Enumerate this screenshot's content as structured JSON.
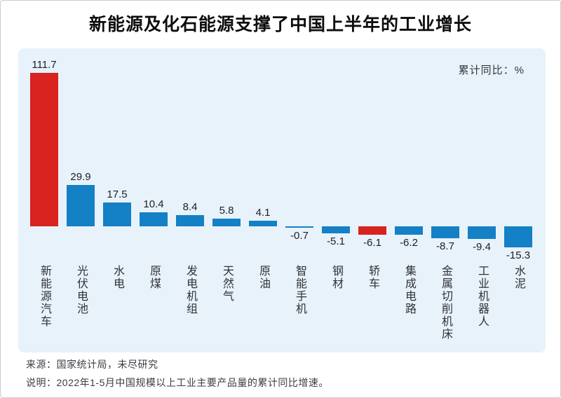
{
  "page": {
    "title": "新能源及化石能源支撑了中国上半年的工业增长",
    "source_line": "来源：国家统计局，未尽研究",
    "note_line": "说明：2022年1-5月中国规模以上工业主要产品量的累计同比增速。"
  },
  "chart_data": {
    "type": "bar",
    "title": "新能源及化石能源支撑了中国上半年的工业增长",
    "unit_label": "累计同比：%",
    "categories": [
      "新能源汽车",
      "光伏电池",
      "水电",
      "原煤",
      "发电机组",
      "天然气",
      "原油",
      "智能手机",
      "钢材",
      "轿车",
      "集成电路",
      "金属切削机床",
      "工业机器人",
      "水泥"
    ],
    "values": [
      111.7,
      29.9,
      17.5,
      10.4,
      8.4,
      5.8,
      4.1,
      -0.7,
      -5.1,
      -6.1,
      -6.2,
      -8.7,
      -9.4,
      -15.3
    ],
    "highlight_indices": [
      0,
      9
    ],
    "colors": {
      "highlight": "#d8231f",
      "default": "#1480c5",
      "panel_bg": "#e8f2fa"
    },
    "ylim": [
      -20,
      120
    ],
    "xlabel": "",
    "ylabel": "累计同比：%",
    "grid": false,
    "legend_position": "top-right",
    "value_labels": "shown at bar ends"
  }
}
